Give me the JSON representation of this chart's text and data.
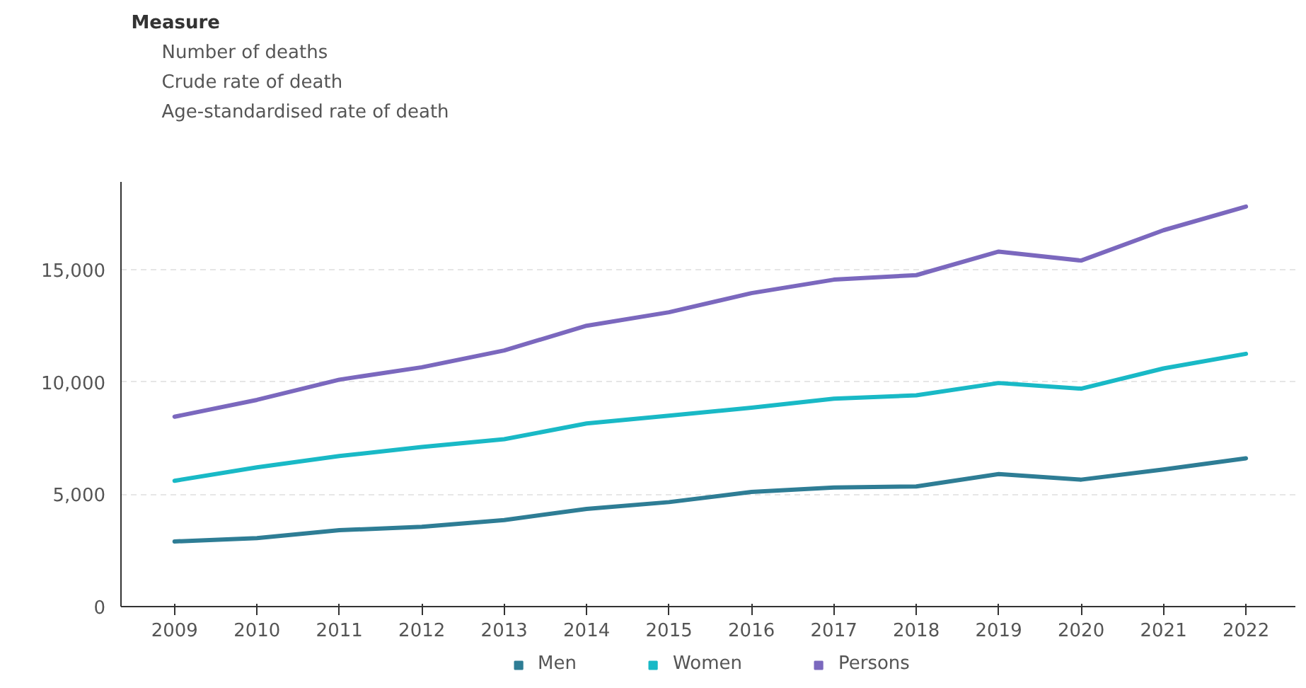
{
  "chart_data": {
    "type": "line",
    "categories": [
      "2009",
      "2010",
      "2011",
      "2012",
      "2013",
      "2014",
      "2015",
      "2016",
      "2017",
      "2018",
      "2019",
      "2020",
      "2021",
      "2022"
    ],
    "series": [
      {
        "name": "Men",
        "color": "#2e7d95",
        "values": [
          2900,
          3050,
          3400,
          3550,
          3850,
          4350,
          4650,
          5100,
          5300,
          5350,
          5900,
          5650,
          6100,
          6600
        ]
      },
      {
        "name": "Women",
        "color": "#19b9c6",
        "values": [
          5600,
          6200,
          6700,
          7100,
          7450,
          8150,
          8500,
          8850,
          9250,
          9400,
          9950,
          9700,
          10600,
          11250
        ]
      },
      {
        "name": "Persons",
        "color": "#7b68be",
        "values": [
          8450,
          9200,
          10100,
          10650,
          11400,
          12500,
          13100,
          13950,
          14550,
          14750,
          15800,
          15400,
          16750,
          17800
        ]
      }
    ],
    "ylim": [
      0,
      18900
    ],
    "yticks": [
      0,
      {
        "value": 5000,
        "label": "5,000"
      },
      {
        "value": 10000,
        "label": "10,000"
      },
      {
        "value": 15000,
        "label": "15,000"
      }
    ],
    "grid": "y",
    "legend": "bottom",
    "marker": "none",
    "line_style": "solid",
    "annotations": [
      "Measure",
      "Number of deaths",
      "Crude rate of death",
      "Age-standardised rate of death"
    ]
  }
}
